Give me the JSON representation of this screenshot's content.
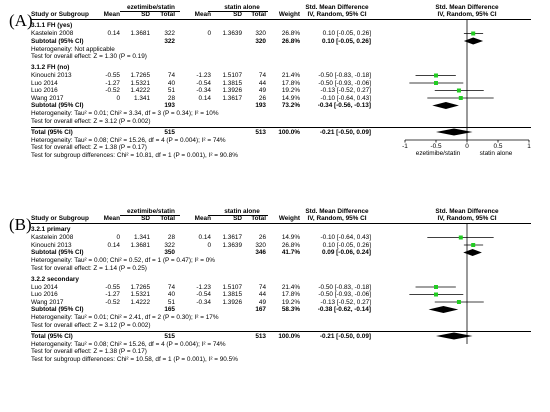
{
  "panels": [
    {
      "label": "(A)",
      "header": {
        "group1": "ezetimibe/statin",
        "group2": "statin alone",
        "effect1": "Std. Mean Difference",
        "effect1_sub": "IV, Random, 95% CI",
        "effect2": "Std. Mean Difference",
        "effect2_sub": "IV, Random, 95% CI",
        "cols": [
          "Study or Subgroup",
          "Mean",
          "SD",
          "Total",
          "Mean",
          "SD",
          "Total",
          "Weight"
        ]
      },
      "subgroups": [
        {
          "name": "3.1.1 FH (yes)",
          "studies": [
            {
              "name": "Kastelein 2008",
              "m1": "0.14",
              "sd1": "1.3681",
              "n1": "322",
              "m2": "0",
              "sd2": "1.3639",
              "n2": "320",
              "weight": "26.8%",
              "ci": "0.10 [-0.05, 0.26]"
            }
          ],
          "subtotal": {
            "label": "Subtotal (95% CI)",
            "n1": "322",
            "n2": "320",
            "weight": "26.8%",
            "ci": "0.10 [-0.05, 0.26]"
          },
          "heterogeneity": "Heterogeneity: Not applicable",
          "overall_test": "Test for overall effect: Z = 1.30 (P = 0.19)"
        },
        {
          "name": "3.1.2 FH (no)",
          "studies": [
            {
              "name": "Kinouchi 2013",
              "m1": "-0.55",
              "sd1": "1.7265",
              "n1": "74",
              "m2": "-1.23",
              "sd2": "1.5107",
              "n2": "74",
              "weight": "21.4%",
              "ci": "-0.50 [-0.83, -0.18]"
            },
            {
              "name": "Luo 2014",
              "m1": "-1.27",
              "sd1": "1.5321",
              "n1": "40",
              "m2": "-0.54",
              "sd2": "1.3815",
              "n2": "44",
              "weight": "17.8%",
              "ci": "-0.50 [-0.93, -0.06]"
            },
            {
              "name": "Luo 2016",
              "m1": "-0.52",
              "sd1": "1.4222",
              "n1": "51",
              "m2": "-0.34",
              "sd2": "1.3926",
              "n2": "49",
              "weight": "19.2%",
              "ci": "-0.13 [-0.52, 0.27]"
            },
            {
              "name": "Wang 2017",
              "m1": "0",
              "sd1": "1.341",
              "n1": "28",
              "m2": "0.14",
              "sd2": "1.3617",
              "n2": "26",
              "weight": "14.9%",
              "ci": "-0.10 [-0.64, 0.43]"
            }
          ],
          "subtotal": {
            "label": "Subtotal (95% CI)",
            "n1": "193",
            "n2": "193",
            "weight": "73.2%",
            "ci": "-0.34 [-0.56, -0.13]"
          },
          "heterogeneity": "Heterogeneity: Tau² = 0.01; Chi² = 3.34, df = 3 (P = 0.34); I² = 10%",
          "overall_test": "Test for overall effect: Z = 3.12 (P = 0.002)"
        }
      ],
      "total": {
        "label": "Total (95% CI)",
        "n1": "515",
        "n2": "513",
        "weight": "100.0%",
        "ci": "-0.21 [-0.50, 0.09]"
      },
      "total_heterogeneity": "Heterogeneity: Tau² = 0.08; Chi² = 15.26, df = 4 (P = 0.004); I² = 74%",
      "total_test": "Test for overall effect: Z = 1.38 (P = 0.17)",
      "subgroup_test": "Test for subgroup differences: Chi² = 10.81, df = 1 (P = 0.001), I² = 90.8%",
      "axis": {
        "ticks": [
          "-1",
          "-0.5",
          "0",
          "0.5",
          "1"
        ],
        "left_label": "ezetimibe/statin",
        "right_label": "statin alone"
      }
    },
    {
      "label": "(B)",
      "header": {
        "group1": "ezetimibe/statin",
        "group2": "statin alone",
        "effect1": "Std. Mean Difference",
        "effect1_sub": "IV, Random, 95% CI",
        "effect2": "Std. Mean Difference",
        "effect2_sub": "IV, Random, 95% CI",
        "cols": [
          "Study or Subgroup",
          "Mean",
          "SD",
          "Total",
          "Mean",
          "SD",
          "Total",
          "Weight"
        ]
      },
      "subgroups": [
        {
          "name": "3.2.1 primary",
          "studies": [
            {
              "name": "Kastelein 2008",
              "m1": "0",
              "sd1": "1.341",
              "n1": "28",
              "m2": "0.14",
              "sd2": "1.3617",
              "n2": "26",
              "weight": "14.9%",
              "ci": "-0.10 [-0.64, 0.43]"
            },
            {
              "name": "Kinouchi 2013",
              "m1": "0.14",
              "sd1": "1.3681",
              "n1": "322",
              "m2": "0",
              "sd2": "1.3639",
              "n2": "320",
              "weight": "26.8%",
              "ci": "0.10 [-0.05, 0.26]"
            }
          ],
          "subtotal": {
            "label": "Subtotal (95% CI)",
            "n1": "350",
            "n2": "346",
            "weight": "41.7%",
            "ci": "0.09 [-0.06, 0.24]"
          },
          "heterogeneity": "Heterogeneity: Tau² = 0.00; Chi² = 0.52, df = 1 (P = 0.47); I² = 0%",
          "overall_test": "Test for overall effect: Z = 1.14 (P = 0.25)"
        },
        {
          "name": "3.2.2 secondary",
          "studies": [
            {
              "name": "Luo 2014",
              "m1": "-0.55",
              "sd1": "1.7265",
              "n1": "74",
              "m2": "-1.23",
              "sd2": "1.5107",
              "n2": "74",
              "weight": "21.4%",
              "ci": "-0.50 [-0.83, -0.18]"
            },
            {
              "name": "Luo 2016",
              "m1": "-1.27",
              "sd1": "1.5321",
              "n1": "40",
              "m2": "-0.54",
              "sd2": "1.3815",
              "n2": "44",
              "weight": "17.8%",
              "ci": "-0.50 [-0.93, -0.06]"
            },
            {
              "name": "Wang 2017",
              "m1": "-0.52",
              "sd1": "1.4222",
              "n1": "51",
              "m2": "-0.34",
              "sd2": "1.3926",
              "n2": "49",
              "weight": "19.2%",
              "ci": "-0.13 [-0.52, 0.27]"
            }
          ],
          "subtotal": {
            "label": "Subtotal (95% CI)",
            "n1": "165",
            "n2": "167",
            "weight": "58.3%",
            "ci": "-0.38 [-0.62, -0.14]"
          },
          "heterogeneity": "Heterogeneity: Tau² = 0.01; Chi² = 2.41, df = 2 (P = 0.30); I² = 17%",
          "overall_test": "Test for overall effect: Z = 3.12 (P = 0.002)"
        }
      ],
      "total": {
        "label": "Total (95% CI)",
        "n1": "515",
        "n2": "513",
        "weight": "100.0%",
        "ci": "-0.21 [-0.50, 0.09]"
      },
      "total_heterogeneity": "Heterogeneity: Tau² = 0.08; Chi² = 15.26, df = 4 (P = 0.004); I² = 74%",
      "total_test": "Test for overall effect: Z = 1.38 (P = 0.17)",
      "subgroup_test": "Test for subgroup differences: Chi² = 10.58, df = 1 (P = 0.001), I² = 90.5%",
      "axis": {
        "ticks": [],
        "left_label": "",
        "right_label": ""
      }
    }
  ],
  "chart_data": [
    {
      "type": "forest",
      "xlim": [
        -1,
        1
      ],
      "x_ticks": [
        -1,
        -0.5,
        0,
        0.5,
        1
      ],
      "xlabel_left": "ezetimibe/statin",
      "xlabel_right": "statin alone",
      "studies": [
        {
          "name": "Kastelein 2008",
          "smd": 0.1,
          "lo": -0.05,
          "hi": 0.26
        },
        {
          "name": "Kinouchi 2013",
          "smd": -0.5,
          "lo": -0.83,
          "hi": -0.18
        },
        {
          "name": "Luo 2014",
          "smd": -0.5,
          "lo": -0.93,
          "hi": -0.06
        },
        {
          "name": "Luo 2016",
          "smd": -0.13,
          "lo": -0.52,
          "hi": 0.27
        },
        {
          "name": "Wang 2017",
          "smd": -0.1,
          "lo": -0.64,
          "hi": 0.43
        }
      ],
      "subtotals": [
        {
          "name": "3.1.1 FH (yes)",
          "smd": 0.1,
          "lo": -0.05,
          "hi": 0.26
        },
        {
          "name": "3.1.2 FH (no)",
          "smd": -0.34,
          "lo": -0.56,
          "hi": -0.13
        }
      ],
      "total": {
        "smd": -0.21,
        "lo": -0.5,
        "hi": 0.09
      },
      "marker_color": "#22cc22"
    },
    {
      "type": "forest",
      "xlim": [
        -1,
        1
      ],
      "studies": [
        {
          "name": "Kastelein 2008",
          "smd": -0.1,
          "lo": -0.64,
          "hi": 0.43
        },
        {
          "name": "Kinouchi 2013",
          "smd": 0.1,
          "lo": -0.05,
          "hi": 0.26
        },
        {
          "name": "Luo 2014",
          "smd": -0.5,
          "lo": -0.83,
          "hi": -0.18
        },
        {
          "name": "Luo 2016",
          "smd": -0.5,
          "lo": -0.93,
          "hi": -0.06
        },
        {
          "name": "Wang 2017",
          "smd": -0.13,
          "lo": -0.52,
          "hi": 0.27
        }
      ],
      "subtotals": [
        {
          "name": "3.2.1 primary",
          "smd": 0.09,
          "lo": -0.06,
          "hi": 0.24
        },
        {
          "name": "3.2.2 secondary",
          "smd": -0.38,
          "lo": -0.62,
          "hi": -0.14
        }
      ],
      "total": {
        "smd": -0.21,
        "lo": -0.5,
        "hi": 0.09
      },
      "marker_color": "#22cc22"
    }
  ]
}
